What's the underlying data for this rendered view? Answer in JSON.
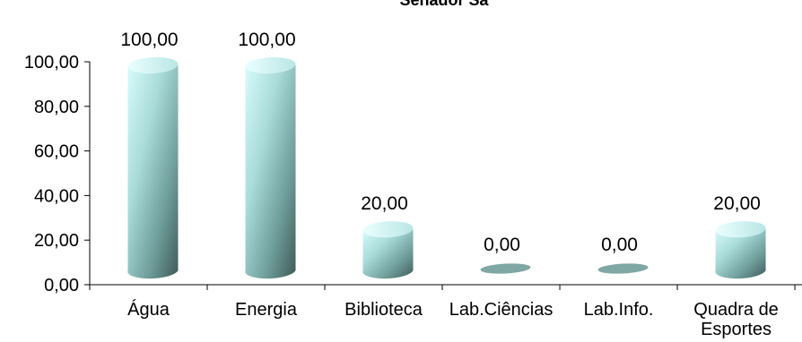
{
  "chart_data": {
    "type": "bar",
    "bar_shape": "cylinder",
    "title": "Senador Sá",
    "categories": [
      "Água",
      "Energia",
      "Biblioteca",
      "Lab.Ciências",
      "Lab.Info.",
      "Quadra de Esportes"
    ],
    "series": [
      {
        "values": [
          100,
          100,
          20,
          0,
          0,
          20
        ],
        "value_labels": [
          "100,00",
          "100,00",
          "20,00",
          "0,00",
          "0,00",
          "20,00"
        ]
      }
    ],
    "y_ticks": [
      "0,00",
      "20,00",
      "40,00",
      "60,00",
      "80,00",
      "100,00"
    ],
    "ylim": [
      0,
      100
    ],
    "grid": false,
    "legend": "none",
    "colors": {
      "bar_light": "#d8fbfb",
      "bar_mid": "#8fc9c6",
      "bar_dark": "#3f5a58",
      "axis": "#000000"
    }
  }
}
